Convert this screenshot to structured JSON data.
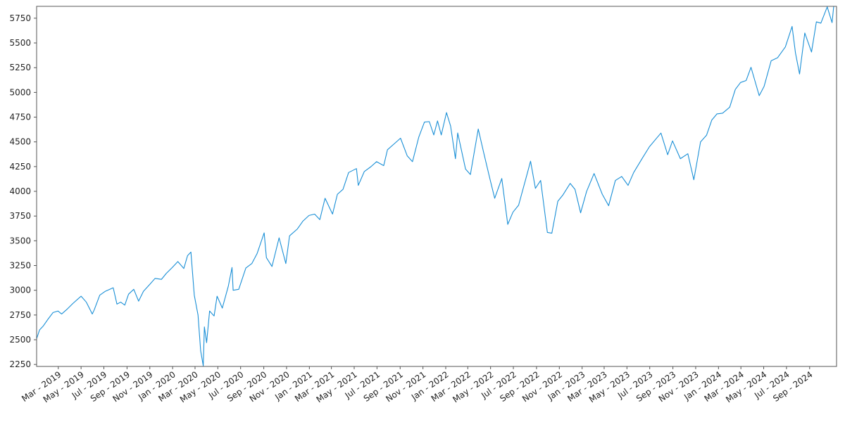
{
  "chart_data": {
    "type": "line",
    "title": "",
    "xlabel": "",
    "ylabel": "",
    "grid": false,
    "line_color": "#1a8fd6",
    "x_range": [
      "2019-01-02",
      "2024-11-12"
    ],
    "ylim": [
      2230,
      5870
    ],
    "yticks": [
      {
        "value": 2250,
        "label": "2250"
      },
      {
        "value": 2500,
        "label": "2500"
      },
      {
        "value": 2750,
        "label": "2750"
      },
      {
        "value": 3000,
        "label": "3000"
      },
      {
        "value": 3250,
        "label": "3250"
      },
      {
        "value": 3500,
        "label": "3500"
      },
      {
        "value": 3750,
        "label": "3750"
      },
      {
        "value": 4000,
        "label": "4000"
      },
      {
        "value": 4250,
        "label": "4250"
      },
      {
        "value": 4500,
        "label": "4500"
      },
      {
        "value": 4750,
        "label": "4750"
      },
      {
        "value": 5000,
        "label": "5000"
      },
      {
        "value": 5250,
        "label": "5250"
      },
      {
        "value": 5500,
        "label": "5500"
      },
      {
        "value": 5750,
        "label": "5750"
      }
    ],
    "xticks": [
      {
        "date": "2019-03-01",
        "label": "Mar - 2019"
      },
      {
        "date": "2019-05-01",
        "label": "May - 2019"
      },
      {
        "date": "2019-07-01",
        "label": "Jul - 2019"
      },
      {
        "date": "2019-09-01",
        "label": "Sep - 2019"
      },
      {
        "date": "2019-11-01",
        "label": "Nov - 2019"
      },
      {
        "date": "2020-01-01",
        "label": "Jan - 2020"
      },
      {
        "date": "2020-03-01",
        "label": "Mar - 2020"
      },
      {
        "date": "2020-05-01",
        "label": "May - 2020"
      },
      {
        "date": "2020-07-01",
        "label": "Jul - 2020"
      },
      {
        "date": "2020-09-01",
        "label": "Sep - 2020"
      },
      {
        "date": "2020-11-01",
        "label": "Nov - 2020"
      },
      {
        "date": "2021-01-01",
        "label": "Jan - 2021"
      },
      {
        "date": "2021-03-01",
        "label": "Mar - 2021"
      },
      {
        "date": "2021-05-01",
        "label": "May - 2021"
      },
      {
        "date": "2021-07-01",
        "label": "Jul - 2021"
      },
      {
        "date": "2021-09-01",
        "label": "Sep - 2021"
      },
      {
        "date": "2021-11-01",
        "label": "Nov - 2021"
      },
      {
        "date": "2022-01-01",
        "label": "Jan - 2022"
      },
      {
        "date": "2022-03-01",
        "label": "Mar - 2022"
      },
      {
        "date": "2022-05-01",
        "label": "May - 2022"
      },
      {
        "date": "2022-07-01",
        "label": "Jul - 2022"
      },
      {
        "date": "2022-09-01",
        "label": "Sep - 2022"
      },
      {
        "date": "2022-11-01",
        "label": "Nov - 2022"
      },
      {
        "date": "2023-01-01",
        "label": "Jan - 2023"
      },
      {
        "date": "2023-03-01",
        "label": "Mar - 2023"
      },
      {
        "date": "2023-05-01",
        "label": "May - 2023"
      },
      {
        "date": "2023-07-01",
        "label": "Jul - 2023"
      },
      {
        "date": "2023-09-01",
        "label": "Sep - 2023"
      },
      {
        "date": "2023-11-01",
        "label": "Nov - 2023"
      },
      {
        "date": "2024-01-01",
        "label": "Jan - 2024"
      },
      {
        "date": "2024-03-01",
        "label": "Mar - 2024"
      },
      {
        "date": "2024-05-01",
        "label": "May - 2024"
      },
      {
        "date": "2024-07-01",
        "label": "Jul - 2024"
      },
      {
        "date": "2024-09-01",
        "label": "Sep - 2024"
      }
    ],
    "series": [
      {
        "values": [
          [
            "2019-01-02",
            2510
          ],
          [
            "2019-01-10",
            2600
          ],
          [
            "2019-01-20",
            2640
          ],
          [
            "2019-01-31",
            2700
          ],
          [
            "2019-02-15",
            2775
          ],
          [
            "2019-02-28",
            2790
          ],
          [
            "2019-03-10",
            2760
          ],
          [
            "2019-03-25",
            2810
          ],
          [
            "2019-04-10",
            2870
          ],
          [
            "2019-04-25",
            2920
          ],
          [
            "2019-05-01",
            2940
          ],
          [
            "2019-05-15",
            2880
          ],
          [
            "2019-05-31",
            2760
          ],
          [
            "2019-06-05",
            2800
          ],
          [
            "2019-06-20",
            2950
          ],
          [
            "2019-07-05",
            2990
          ],
          [
            "2019-07-26",
            3025
          ],
          [
            "2019-08-05",
            2860
          ],
          [
            "2019-08-15",
            2880
          ],
          [
            "2019-08-26",
            2850
          ],
          [
            "2019-09-05",
            2960
          ],
          [
            "2019-09-19",
            3010
          ],
          [
            "2019-10-02",
            2890
          ],
          [
            "2019-10-15",
            2990
          ],
          [
            "2019-11-01",
            3060
          ],
          [
            "2019-11-15",
            3120
          ],
          [
            "2019-12-02",
            3110
          ],
          [
            "2019-12-15",
            3170
          ],
          [
            "2019-12-31",
            3230
          ],
          [
            "2020-01-15",
            3290
          ],
          [
            "2020-01-31",
            3220
          ],
          [
            "2020-02-10",
            3350
          ],
          [
            "2020-02-19",
            3386
          ],
          [
            "2020-02-28",
            2950
          ],
          [
            "2020-03-09",
            2750
          ],
          [
            "2020-03-16",
            2390
          ],
          [
            "2020-03-23",
            2237
          ],
          [
            "2020-03-26",
            2630
          ],
          [
            "2020-04-01",
            2470
          ],
          [
            "2020-04-09",
            2790
          ],
          [
            "2020-04-21",
            2740
          ],
          [
            "2020-04-29",
            2940
          ],
          [
            "2020-05-13",
            2820
          ],
          [
            "2020-05-29",
            3040
          ],
          [
            "2020-06-08",
            3230
          ],
          [
            "2020-06-11",
            3000
          ],
          [
            "2020-06-26",
            3010
          ],
          [
            "2020-07-15",
            3225
          ],
          [
            "2020-07-31",
            3270
          ],
          [
            "2020-08-14",
            3370
          ],
          [
            "2020-09-02",
            3580
          ],
          [
            "2020-09-08",
            3330
          ],
          [
            "2020-09-23",
            3240
          ],
          [
            "2020-10-12",
            3530
          ],
          [
            "2020-10-30",
            3270
          ],
          [
            "2020-11-09",
            3550
          ],
          [
            "2020-11-30",
            3620
          ],
          [
            "2020-12-15",
            3700
          ],
          [
            "2020-12-31",
            3756
          ],
          [
            "2021-01-15",
            3770
          ],
          [
            "2021-01-29",
            3714
          ],
          [
            "2021-02-12",
            3930
          ],
          [
            "2021-03-04",
            3770
          ],
          [
            "2021-03-17",
            3970
          ],
          [
            "2021-04-01",
            4020
          ],
          [
            "2021-04-16",
            4190
          ],
          [
            "2021-05-07",
            4230
          ],
          [
            "2021-05-12",
            4060
          ],
          [
            "2021-05-28",
            4200
          ],
          [
            "2021-06-15",
            4250
          ],
          [
            "2021-06-30",
            4300
          ],
          [
            "2021-07-19",
            4260
          ],
          [
            "2021-07-29",
            4420
          ],
          [
            "2021-08-16",
            4480
          ],
          [
            "2021-09-02",
            4537
          ],
          [
            "2021-09-20",
            4358
          ],
          [
            "2021-10-04",
            4300
          ],
          [
            "2021-10-21",
            4550
          ],
          [
            "2021-11-05",
            4700
          ],
          [
            "2021-11-18",
            4705
          ],
          [
            "2021-11-30",
            4570
          ],
          [
            "2021-12-10",
            4712
          ],
          [
            "2021-12-20",
            4570
          ],
          [
            "2022-01-03",
            4796
          ],
          [
            "2022-01-14",
            4660
          ],
          [
            "2022-01-27",
            4330
          ],
          [
            "2022-02-02",
            4590
          ],
          [
            "2022-02-23",
            4225
          ],
          [
            "2022-03-08",
            4170
          ],
          [
            "2022-03-29",
            4630
          ],
          [
            "2022-04-12",
            4400
          ],
          [
            "2022-04-29",
            4130
          ],
          [
            "2022-05-12",
            3930
          ],
          [
            "2022-05-31",
            4130
          ],
          [
            "2022-06-16",
            3666
          ],
          [
            "2022-06-30",
            3790
          ],
          [
            "2022-07-15",
            3860
          ],
          [
            "2022-08-05",
            4150
          ],
          [
            "2022-08-16",
            4305
          ],
          [
            "2022-08-29",
            4030
          ],
          [
            "2022-09-12",
            4110
          ],
          [
            "2022-09-30",
            3585
          ],
          [
            "2022-10-12",
            3577
          ],
          [
            "2022-10-28",
            3900
          ],
          [
            "2022-11-10",
            3960
          ],
          [
            "2022-11-30",
            4080
          ],
          [
            "2022-12-13",
            4020
          ],
          [
            "2022-12-28",
            3783
          ],
          [
            "2023-01-13",
            3999
          ],
          [
            "2023-02-02",
            4180
          ],
          [
            "2023-02-24",
            3970
          ],
          [
            "2023-03-13",
            3855
          ],
          [
            "2023-03-31",
            4110
          ],
          [
            "2023-04-17",
            4150
          ],
          [
            "2023-05-04",
            4060
          ],
          [
            "2023-05-19",
            4190
          ],
          [
            "2023-06-12",
            4340
          ],
          [
            "2023-06-30",
            4450
          ],
          [
            "2023-07-20",
            4540
          ],
          [
            "2023-07-31",
            4589
          ],
          [
            "2023-08-18",
            4370
          ],
          [
            "2023-08-31",
            4510
          ],
          [
            "2023-09-21",
            4330
          ],
          [
            "2023-10-11",
            4380
          ],
          [
            "2023-10-27",
            4117
          ],
          [
            "2023-11-14",
            4500
          ],
          [
            "2023-11-30",
            4567
          ],
          [
            "2023-12-14",
            4720
          ],
          [
            "2023-12-28",
            4783
          ],
          [
            "2024-01-12",
            4790
          ],
          [
            "2024-01-31",
            4850
          ],
          [
            "2024-02-15",
            5030
          ],
          [
            "2024-02-29",
            5100
          ],
          [
            "2024-03-15",
            5120
          ],
          [
            "2024-03-28",
            5254
          ],
          [
            "2024-04-19",
            4967
          ],
          [
            "2024-05-02",
            5060
          ],
          [
            "2024-05-21",
            5320
          ],
          [
            "2024-06-07",
            5350
          ],
          [
            "2024-06-28",
            5460
          ],
          [
            "2024-07-16",
            5667
          ],
          [
            "2024-07-25",
            5400
          ],
          [
            "2024-08-05",
            5186
          ],
          [
            "2024-08-19",
            5600
          ],
          [
            "2024-09-06",
            5408
          ],
          [
            "2024-09-19",
            5713
          ],
          [
            "2024-10-01",
            5700
          ],
          [
            "2024-10-18",
            5864
          ],
          [
            "2024-10-31",
            5705
          ],
          [
            "2024-11-06",
            5929
          ],
          [
            "2024-11-12",
            5983
          ]
        ]
      }
    ]
  }
}
